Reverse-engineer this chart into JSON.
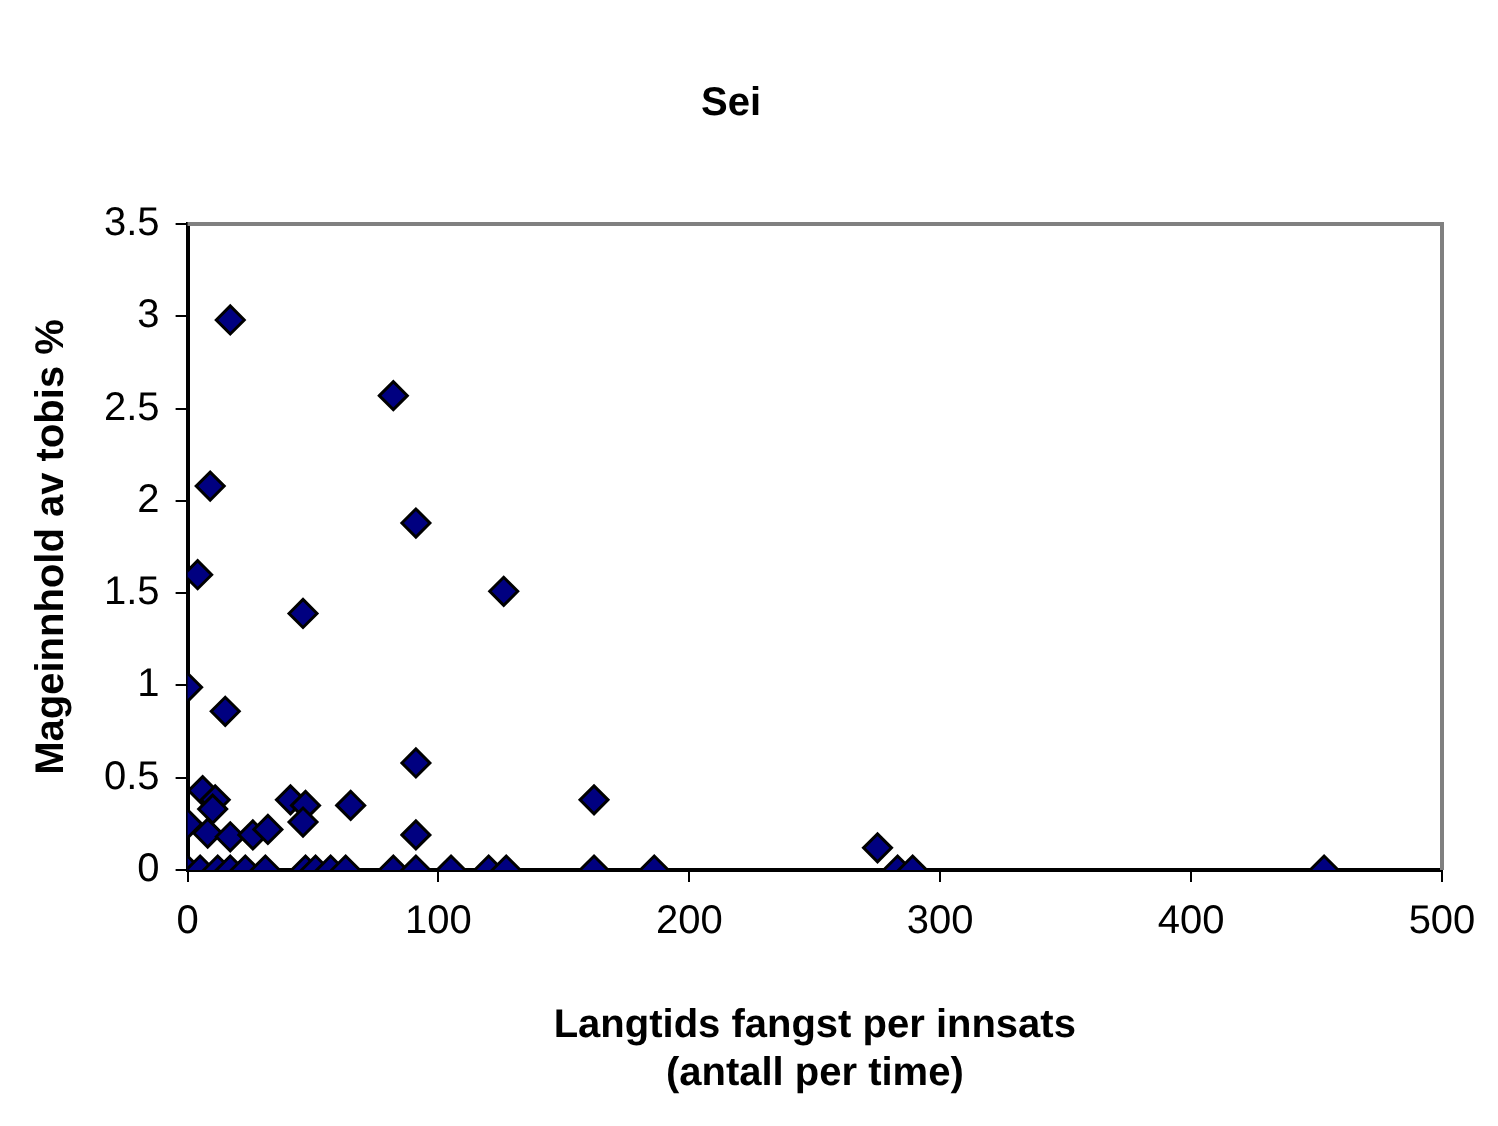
{
  "chart_data": {
    "type": "scatter",
    "title": "Sei",
    "xlabel": "Langtids fangst per innsats\n(antall per time)",
    "ylabel": "Mageinnhold av tobis %",
    "x": [
      17,
      82,
      9,
      91,
      4,
      126,
      46,
      0,
      15,
      91,
      6,
      11,
      10,
      41,
      47,
      46,
      65,
      162,
      0,
      8,
      17,
      26,
      32,
      91,
      275,
      0,
      5,
      12,
      17,
      23,
      31,
      47,
      51,
      57,
      63,
      82,
      91,
      105,
      120,
      127,
      162,
      186,
      283,
      289,
      453
    ],
    "values": [
      2.98,
      2.57,
      2.08,
      1.88,
      1.6,
      1.51,
      1.39,
      0.99,
      0.86,
      0.58,
      0.43,
      0.38,
      0.33,
      0.38,
      0.35,
      0.26,
      0.35,
      0.38,
      0.25,
      0.2,
      0.18,
      0.19,
      0.22,
      0.19,
      0.12,
      0,
      0,
      0,
      0,
      0,
      0,
      0,
      0,
      0,
      0,
      0,
      0,
      0,
      0,
      0,
      0,
      0,
      0,
      0,
      0
    ],
    "color": "#000080",
    "marker": "diamond",
    "xlim": [
      0,
      500
    ],
    "ylim": [
      0,
      3.5
    ],
    "xticks": [
      0,
      100,
      200,
      300,
      400,
      500
    ],
    "yticks": [
      0,
      0.5,
      1,
      1.5,
      2,
      2.5,
      3,
      3.5
    ],
    "grid": false,
    "legend": false
  }
}
